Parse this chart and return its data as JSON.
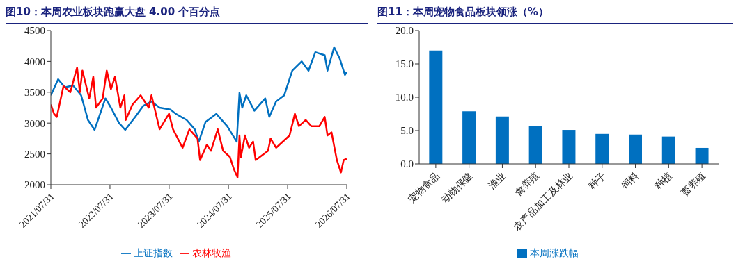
{
  "chart_data": [
    {
      "type": "line",
      "title": "图10：本周农业板块跑赢大盘 4.00 个百分点",
      "legend": "bottom",
      "grid": false,
      "marker": "none",
      "line_style": "solid",
      "xlim": [
        "2021-07-31",
        "2026-07-31"
      ],
      "xticks": [
        {
          "value": "2021-07-31",
          "label": "2021/07/31"
        },
        {
          "value": "2022-07-31",
          "label": "2022/07/31"
        },
        {
          "value": "2023-07-31",
          "label": "2023/07/31"
        },
        {
          "value": "2024-07-31",
          "label": "2024/07/31"
        },
        {
          "value": "2025-07-31",
          "label": "2025/07/31"
        },
        {
          "value": "2026-07-31",
          "label": "2026/07/31"
        }
      ],
      "ylim": [
        2000,
        4500
      ],
      "yticks": [
        2000,
        2500,
        3000,
        3500,
        4000,
        4500
      ],
      "series": [
        {
          "name": "上证指数",
          "color": "#0070c0",
          "x": [
            "2021-07-31",
            "2021-09-14",
            "2021-10-26",
            "2021-12-15",
            "2022-02-03",
            "2022-03-17",
            "2022-04-27",
            "2022-07-03",
            "2022-08-06",
            "2022-09-25",
            "2022-11-02",
            "2023-01-03",
            "2023-02-22",
            "2023-04-13",
            "2023-06-02",
            "2023-08-08",
            "2023-09-10",
            "2023-11-16",
            "2024-01-05",
            "2024-01-30",
            "2024-03-12",
            "2024-05-17",
            "2024-07-23",
            "2024-09-20",
            "2024-10-07",
            "2024-10-24",
            "2024-11-18",
            "2025-01-07",
            "2025-03-15",
            "2025-04-09",
            "2025-05-21",
            "2025-07-10",
            "2025-08-29",
            "2025-10-26",
            "2025-12-07",
            "2026-01-18",
            "2026-03-17",
            "2026-04-03",
            "2026-05-14",
            "2026-06-17",
            "2026-07-20",
            "2026-07-31"
          ],
          "values": [
            3450,
            3710,
            3580,
            3610,
            3450,
            3050,
            2890,
            3400,
            3250,
            3000,
            2890,
            3100,
            3280,
            3350,
            3250,
            3220,
            3150,
            3050,
            2900,
            2700,
            3020,
            3150,
            2950,
            2700,
            3490,
            3250,
            3450,
            3200,
            3400,
            3100,
            3350,
            3450,
            3850,
            4000,
            3850,
            4150,
            4100,
            3850,
            4230,
            4050,
            3780,
            3830
          ]
        },
        {
          "name": "农林牧渔",
          "color": "#ff0000",
          "x": [
            "2021-07-31",
            "2021-08-20",
            "2021-09-06",
            "2021-10-17",
            "2021-11-28",
            "2022-01-09",
            "2022-01-26",
            "2022-02-11",
            "2022-03-25",
            "2022-04-19",
            "2022-05-06",
            "2022-06-16",
            "2022-07-11",
            "2022-08-06",
            "2022-08-31",
            "2022-10-03",
            "2022-10-28",
            "2022-11-05",
            "2022-12-17",
            "2023-02-05",
            "2023-03-27",
            "2023-04-13",
            "2023-06-02",
            "2023-07-30",
            "2023-08-24",
            "2023-10-22",
            "2023-12-03",
            "2024-01-22",
            "2024-02-07",
            "2024-03-20",
            "2024-04-14",
            "2024-05-26",
            "2024-06-28",
            "2024-08-09",
            "2024-09-03",
            "2024-09-25",
            "2024-10-07",
            "2024-10-16",
            "2024-11-10",
            "2024-12-05",
            "2024-12-30",
            "2025-01-15",
            "2025-04-01",
            "2025-04-17",
            "2025-05-21",
            "2025-08-12",
            "2025-09-14",
            "2025-10-09",
            "2025-11-20",
            "2025-12-24",
            "2026-02-12",
            "2026-03-17",
            "2026-04-03",
            "2026-04-28",
            "2026-05-31",
            "2026-06-25",
            "2026-07-12",
            "2026-07-31"
          ],
          "values": [
            3300,
            3150,
            3100,
            3600,
            3500,
            3900,
            3500,
            3850,
            3400,
            3750,
            3250,
            3400,
            3850,
            3550,
            3750,
            3250,
            3450,
            3050,
            3300,
            3450,
            3250,
            3450,
            2900,
            3150,
            2900,
            2600,
            2900,
            2750,
            2400,
            2650,
            2550,
            2900,
            2550,
            2450,
            2250,
            2120,
            2800,
            2450,
            2800,
            2600,
            2700,
            2400,
            2550,
            2750,
            2600,
            2800,
            3150,
            2950,
            3050,
            2950,
            2950,
            3100,
            2800,
            2850,
            2400,
            2200,
            2400,
            2420
          ]
        }
      ]
    },
    {
      "type": "bar",
      "title": "图11：本周宠物食品板块领涨（%）",
      "legend": "bottom",
      "grid": false,
      "categories": [
        "宠物食品",
        "动物保健",
        "渔业",
        "禽养殖",
        "农产品加工及林业",
        "种子",
        "饲料",
        "种植",
        "畜养殖"
      ],
      "ylim": [
        0,
        20
      ],
      "yticks": [
        {
          "value": 0,
          "label": "0.0"
        },
        {
          "value": 5,
          "label": "5.0"
        },
        {
          "value": 10,
          "label": "10.0"
        },
        {
          "value": 15,
          "label": "15.0"
        },
        {
          "value": 20,
          "label": "20.0"
        }
      ],
      "series": [
        {
          "name": "本周涨跌幅",
          "color": "#0070c0",
          "values": [
            17.0,
            7.9,
            7.1,
            5.7,
            5.1,
            4.5,
            4.4,
            4.1,
            2.4
          ]
        }
      ]
    }
  ]
}
